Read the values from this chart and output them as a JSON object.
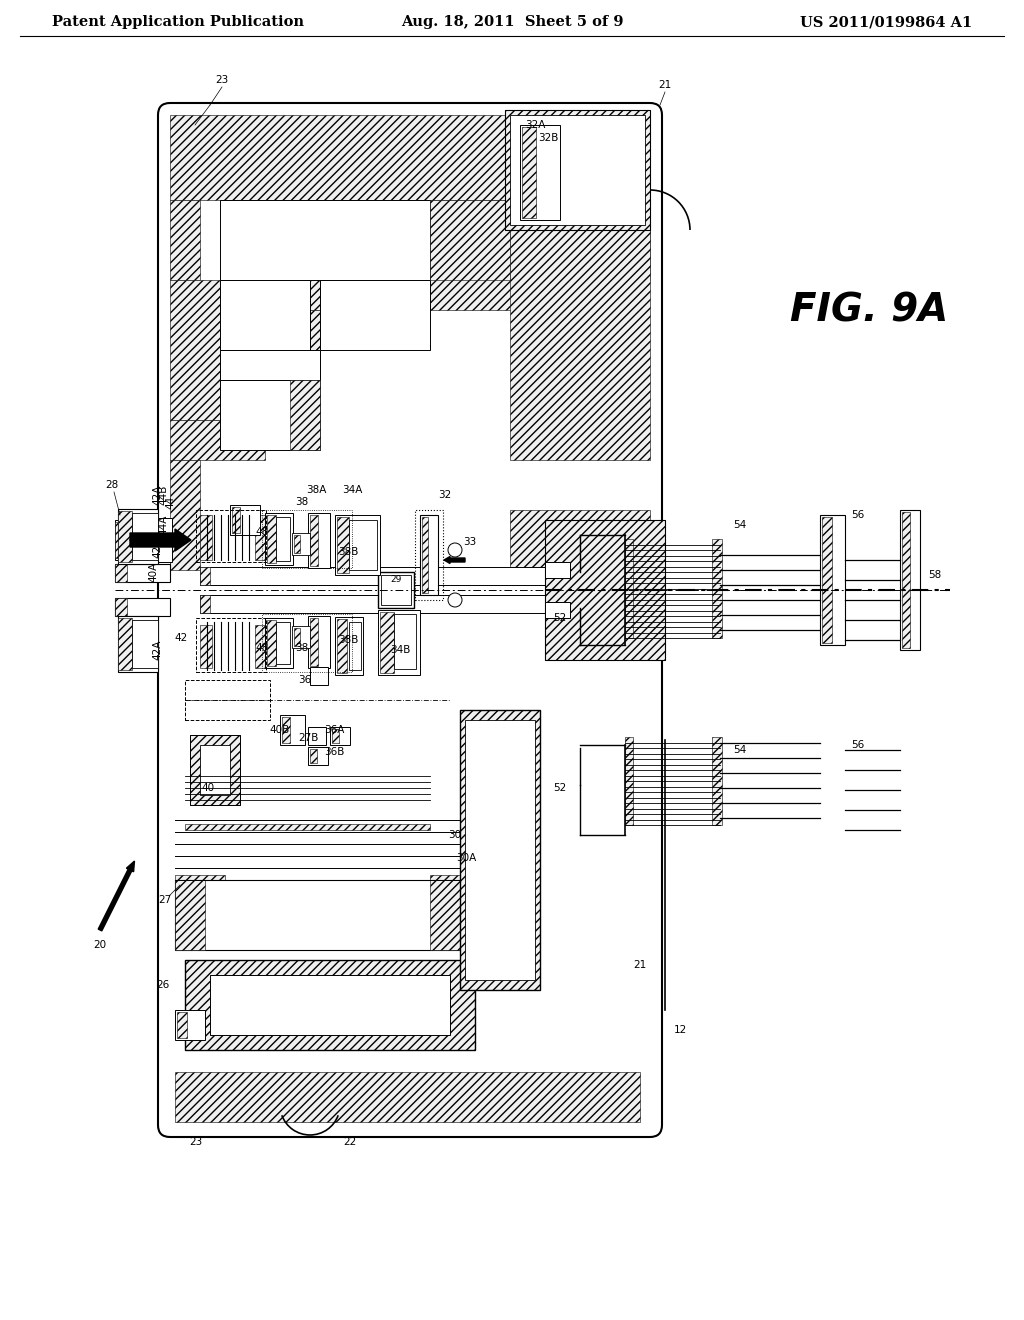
{
  "background_color": "#ffffff",
  "line_color": "#000000",
  "header_left": "Patent Application Publication",
  "header_center": "Aug. 18, 2011  Sheet 5 of 9",
  "header_right": "US 2011/0199864 A1",
  "fig_label": "FIG. 9A",
  "header_font_size": 10.5,
  "fig_label_font_size": 28,
  "label_font_size": 7.5
}
